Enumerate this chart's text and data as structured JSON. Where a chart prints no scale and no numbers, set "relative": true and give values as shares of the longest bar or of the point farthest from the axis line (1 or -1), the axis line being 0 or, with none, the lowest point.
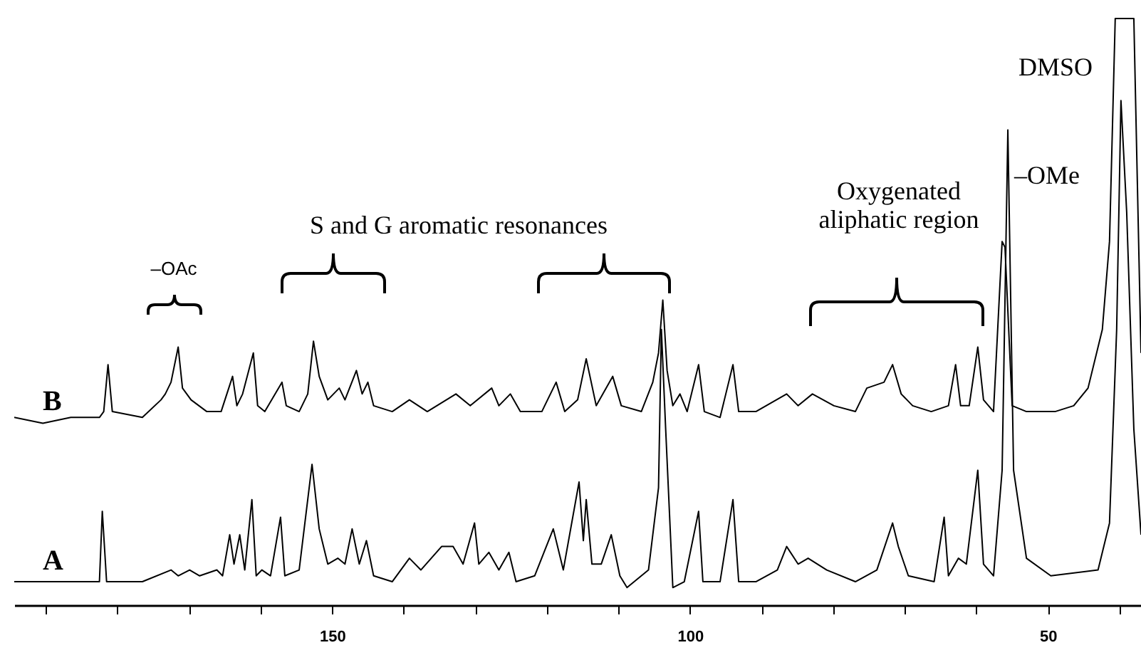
{
  "chart_data": {
    "type": "line",
    "relative": true,
    "xlim": [
      194.4,
      37
    ],
    "xticks": [
      {
        "value": 190,
        "label": null
      },
      {
        "value": 180,
        "label": null
      },
      {
        "value": 170,
        "label": null
      },
      {
        "value": 160,
        "label": null
      },
      150,
      {
        "value": 140,
        "label": null
      },
      {
        "value": 130,
        "label": null
      },
      {
        "value": 120,
        "label": null
      },
      {
        "value": 110,
        "label": null
      },
      100,
      {
        "value": 90,
        "label": null
      },
      {
        "value": 80,
        "label": null
      },
      {
        "value": 70,
        "label": null
      },
      {
        "value": 60,
        "label": null
      },
      50,
      {
        "value": 40,
        "label": null
      }
    ],
    "series": [
      {
        "name": "B",
        "color": "#000000",
        "x": [
          194.4,
          190.4,
          186.5,
          182.5,
          181.9,
          181.3,
          180.7,
          176.5,
          173.9,
          173.3,
          172.5,
          171.5,
          170.9,
          169.7,
          167.5,
          165.5,
          163.9,
          163.3,
          162.5,
          161.0,
          160.4,
          159.4,
          157.0,
          156.4,
          154.6,
          153.4,
          152.6,
          151.8,
          150.6,
          149.0,
          148.2,
          146.6,
          145.8,
          145.0,
          144.2,
          141.6,
          139.2,
          136.7,
          132.7,
          130.7,
          127.7,
          126.7,
          125.1,
          123.7,
          120.7,
          118.7,
          117.5,
          115.7,
          114.5,
          113.1,
          110.8,
          109.6,
          106.8,
          105.2,
          104.4,
          103.8,
          103.2,
          102.4,
          101.4,
          100.4,
          98.8,
          98.0,
          95.8,
          94.0,
          93.2,
          90.8,
          86.5,
          84.9,
          82.9,
          79.9,
          76.9,
          75.3,
          72.9,
          71.7,
          70.5,
          68.9,
          66.3,
          63.9,
          62.9,
          62.2,
          61.0,
          59.8,
          59.0,
          57.6,
          56.4,
          56.0,
          55.0,
          53.0,
          49.0,
          46.4,
          44.4,
          42.4,
          41.4,
          40.6,
          38.0,
          37.0
        ],
        "values": [
          0.32,
          0.31,
          0.32,
          0.32,
          0.33,
          0.41,
          0.33,
          0.32,
          0.35,
          0.36,
          0.38,
          0.44,
          0.37,
          0.35,
          0.33,
          0.33,
          0.39,
          0.34,
          0.36,
          0.43,
          0.34,
          0.33,
          0.38,
          0.34,
          0.33,
          0.36,
          0.45,
          0.39,
          0.35,
          0.37,
          0.35,
          0.4,
          0.36,
          0.38,
          0.34,
          0.33,
          0.35,
          0.33,
          0.36,
          0.34,
          0.37,
          0.34,
          0.36,
          0.33,
          0.33,
          0.38,
          0.33,
          0.35,
          0.42,
          0.34,
          0.39,
          0.34,
          0.33,
          0.38,
          0.43,
          0.52,
          0.4,
          0.34,
          0.36,
          0.33,
          0.41,
          0.33,
          0.32,
          0.41,
          0.33,
          0.33,
          0.36,
          0.34,
          0.36,
          0.34,
          0.33,
          0.37,
          0.38,
          0.41,
          0.36,
          0.34,
          0.33,
          0.34,
          0.41,
          0.34,
          0.34,
          0.44,
          0.35,
          0.33,
          0.62,
          0.61,
          0.34,
          0.33,
          0.33,
          0.34,
          0.37,
          0.47,
          0.62,
          1,
          1,
          0.43
        ]
      },
      {
        "name": "A",
        "color": "#000000",
        "x": [
          194.4,
          188.4,
          182.5,
          182.1,
          181.5,
          176.5,
          172.5,
          171.5,
          169.9,
          168.5,
          166.1,
          165.3,
          164.3,
          163.7,
          162.9,
          162.2,
          161.2,
          160.6,
          159.8,
          158.6,
          157.2,
          156.6,
          154.6,
          152.8,
          151.8,
          150.6,
          149.2,
          148.2,
          147.2,
          146.2,
          145.2,
          144.2,
          141.6,
          139.2,
          137.6,
          134.7,
          133.1,
          131.7,
          130.1,
          129.5,
          128.1,
          126.7,
          125.3,
          124.3,
          121.7,
          119.1,
          117.7,
          115.5,
          114.9,
          114.5,
          113.7,
          112.4,
          111.0,
          109.8,
          108.8,
          105.8,
          104.4,
          104.0,
          103.4,
          102.4,
          100.8,
          98.8,
          98.2,
          95.8,
          94.0,
          93.2,
          90.8,
          87.8,
          86.5,
          84.9,
          83.5,
          80.9,
          76.9,
          73.9,
          71.7,
          70.9,
          69.5,
          65.9,
          64.5,
          63.9,
          62.5,
          61.4,
          59.8,
          59.0,
          57.6,
          56.4,
          55.6,
          54.8,
          53.0,
          49.6,
          43.0,
          41.4,
          40.4,
          39.8,
          39.0,
          38.0,
          37.0
        ],
        "values": [
          0.04,
          0.04,
          0.04,
          0.16,
          0.04,
          0.04,
          0.06,
          0.05,
          0.06,
          0.05,
          0.06,
          0.05,
          0.12,
          0.07,
          0.12,
          0.06,
          0.18,
          0.05,
          0.06,
          0.05,
          0.15,
          0.05,
          0.06,
          0.24,
          0.13,
          0.07,
          0.08,
          0.07,
          0.13,
          0.07,
          0.11,
          0.05,
          0.04,
          0.08,
          0.06,
          0.1,
          0.1,
          0.07,
          0.14,
          0.07,
          0.09,
          0.06,
          0.09,
          0.04,
          0.05,
          0.13,
          0.06,
          0.21,
          0.11,
          0.18,
          0.07,
          0.07,
          0.12,
          0.05,
          0.03,
          0.06,
          0.2,
          0.47,
          0.3,
          0.03,
          0.04,
          0.16,
          0.04,
          0.04,
          0.18,
          0.04,
          0.04,
          0.06,
          0.1,
          0.07,
          0.08,
          0.06,
          0.04,
          0.06,
          0.14,
          0.1,
          0.05,
          0.04,
          0.15,
          0.05,
          0.08,
          0.07,
          0.23,
          0.07,
          0.05,
          0.23,
          0.81,
          0.23,
          0.08,
          0.05,
          0.06,
          0.14,
          0.47,
          0.86,
          0.67,
          0.3,
          0.12
        ]
      }
    ],
    "annotations": [
      "–OAc",
      "S and G aromatic resonances",
      "Oxygenated aliphatic region",
      "–OMe",
      "DMSO"
    ]
  }
}
